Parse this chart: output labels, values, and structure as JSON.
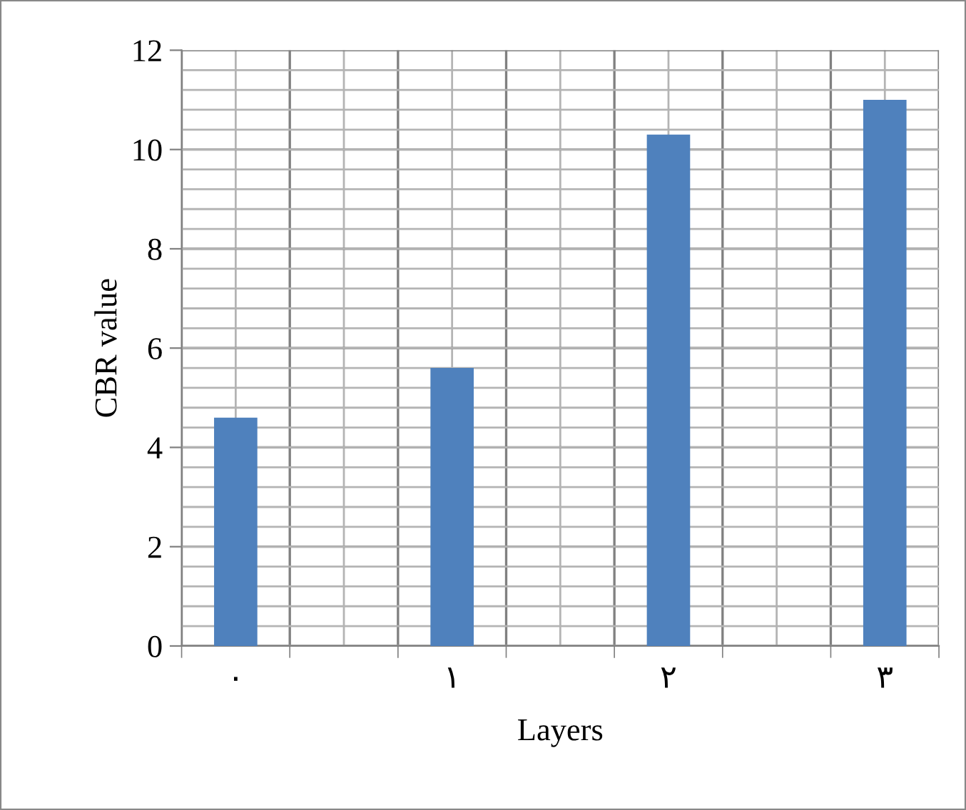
{
  "chart_data": {
    "type": "bar",
    "xlabel": "Layers",
    "ylabel": "CBR value",
    "categories": [
      "٠",
      null,
      "١",
      null,
      "٢",
      null,
      "٣"
    ],
    "values": [
      4.6,
      null,
      5.6,
      null,
      10.3,
      null,
      11.0
    ],
    "color": "#4f81bd",
    "ylim": [
      0,
      12
    ],
    "yticks": [
      0,
      2,
      4,
      6,
      8,
      10,
      12
    ],
    "grid": true,
    "legend": false
  }
}
